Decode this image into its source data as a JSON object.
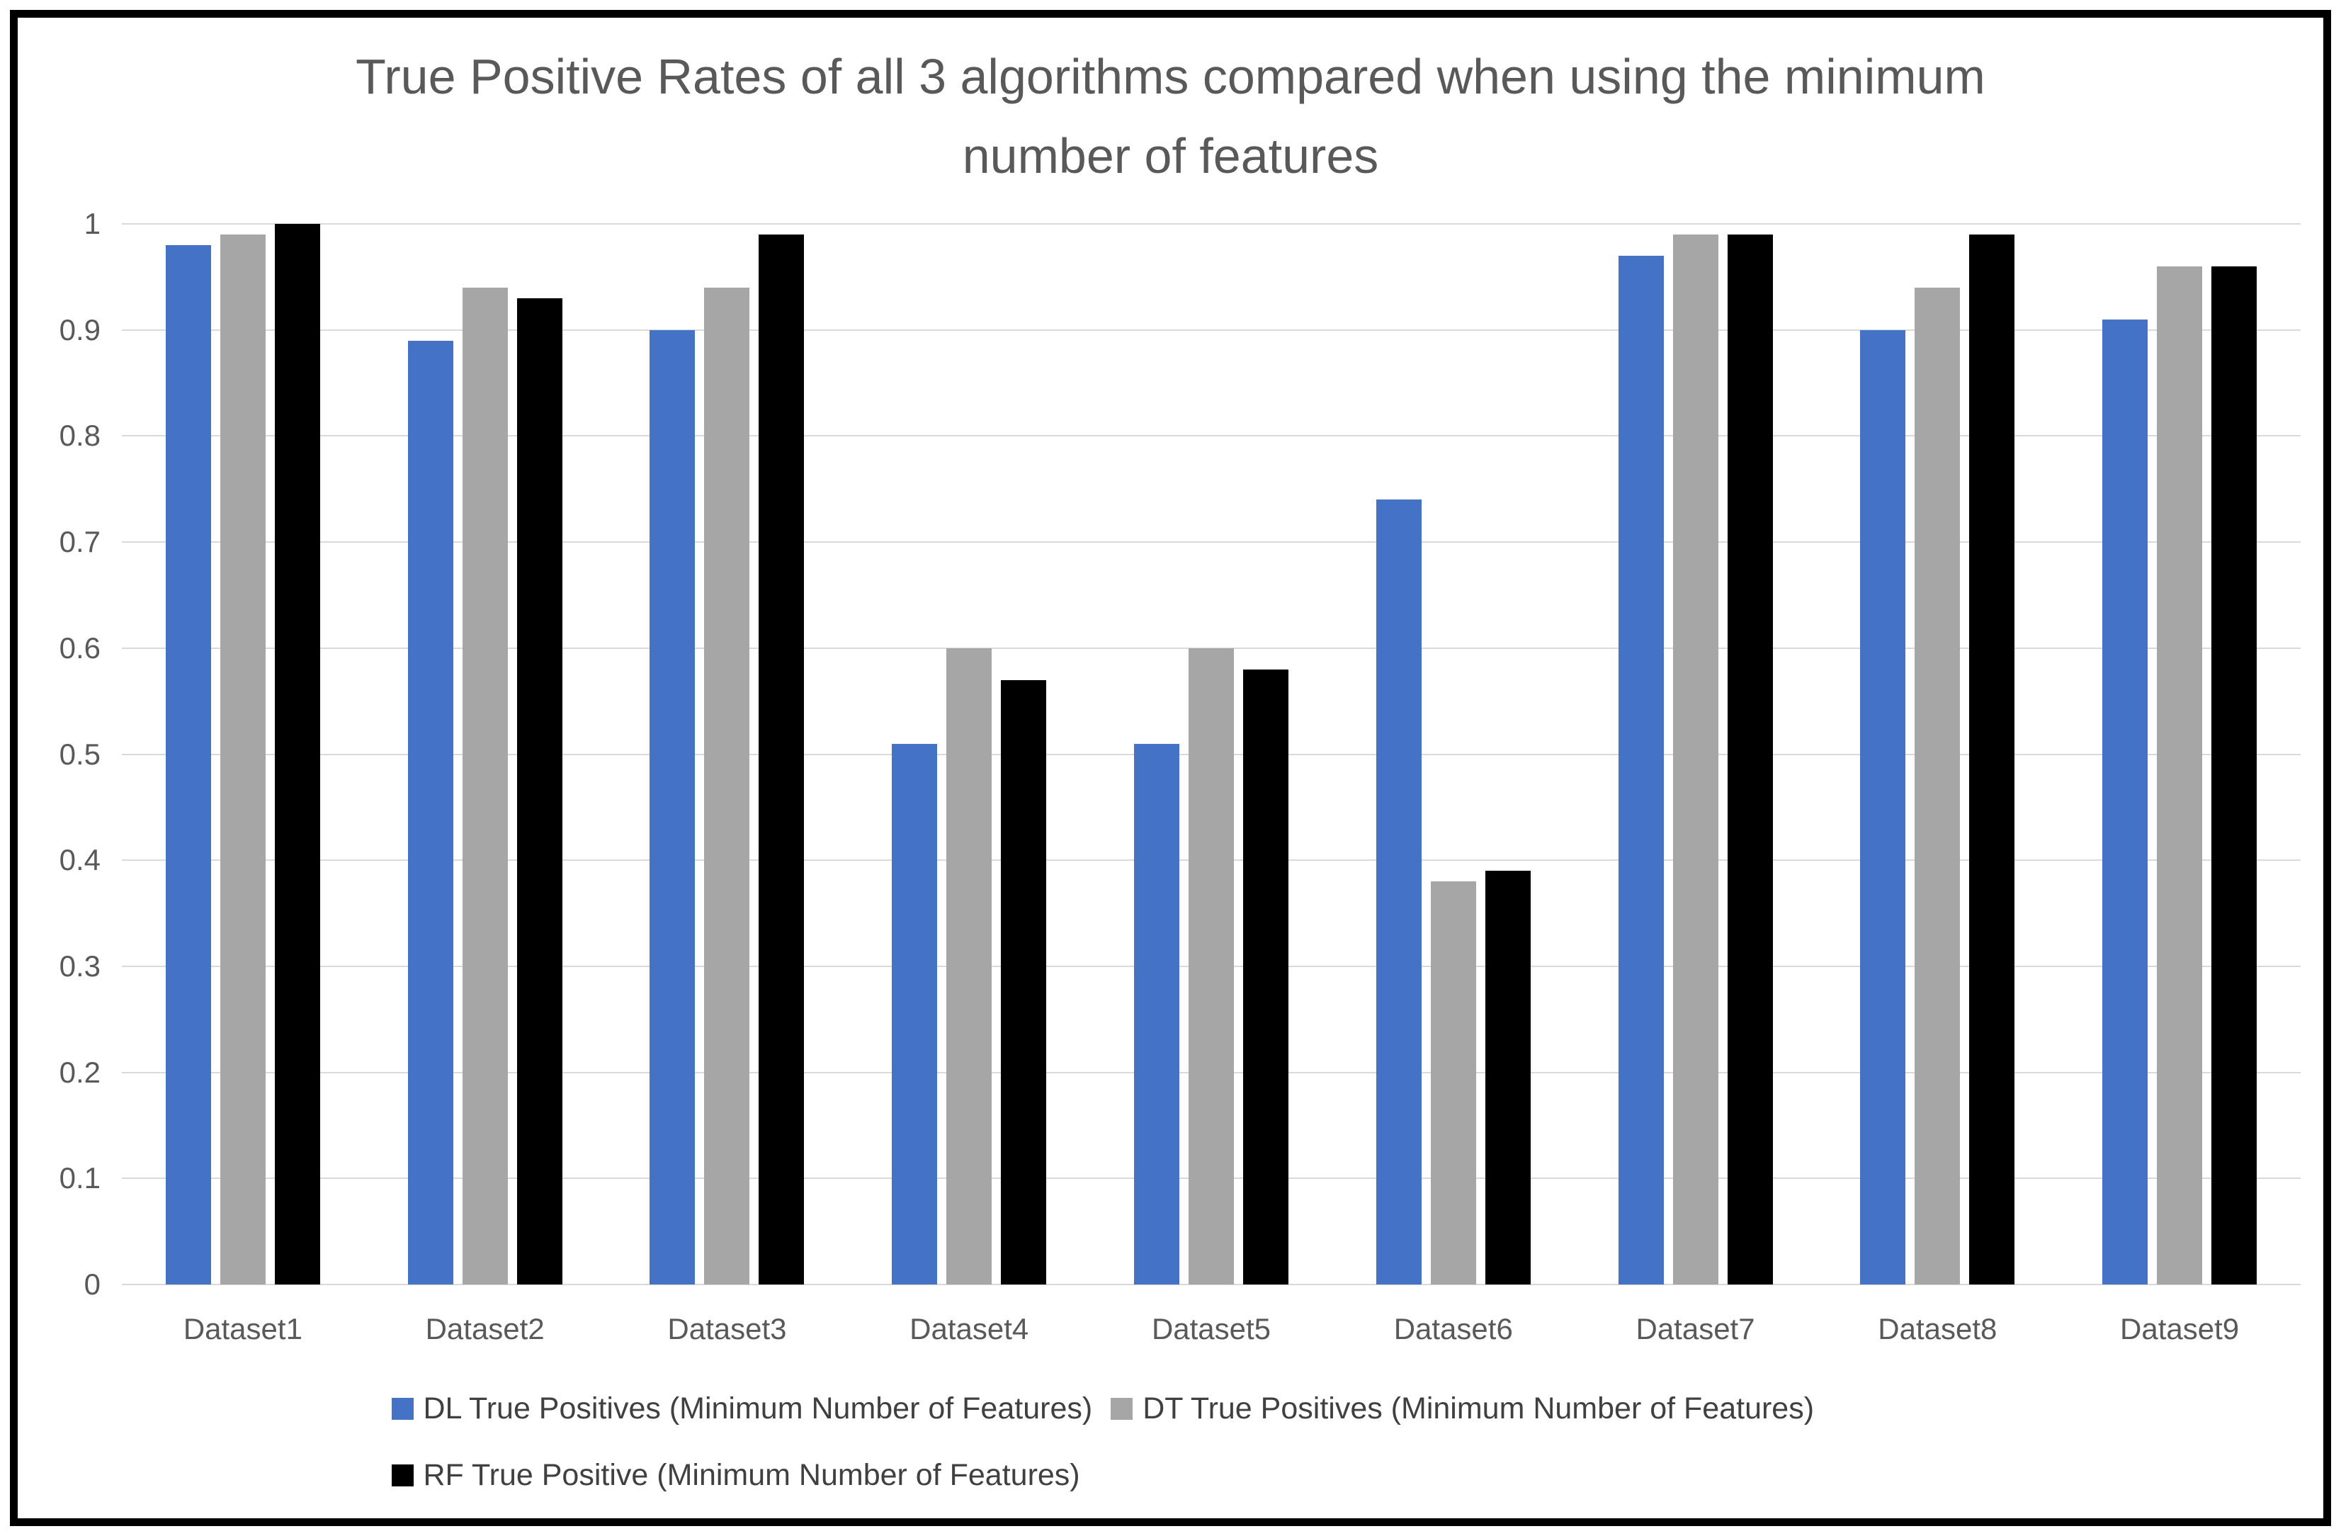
{
  "title": {
    "line1": "True Positive Rates of all 3 algorithms compared when using the minimum",
    "line2": "number of features"
  },
  "chart_data": {
    "type": "bar",
    "title": "True Positive Rates of all 3 algorithms compared when using the minimum number of features",
    "categories": [
      "Dataset1",
      "Dataset2",
      "Dataset3",
      "Dataset4",
      "Dataset5",
      "Dataset6",
      "Dataset7",
      "Dataset8",
      "Dataset9"
    ],
    "series": [
      {
        "name": "DL True Positives (Minimum Number of Features)",
        "short": "DL",
        "color": "#4472C4",
        "values": [
          0.98,
          0.89,
          0.9,
          0.51,
          0.51,
          0.74,
          0.97,
          0.9,
          0.91
        ]
      },
      {
        "name": "DT True Positives (Minimum Number of Features)",
        "short": "DT",
        "color": "#A6A6A6",
        "values": [
          0.99,
          0.94,
          0.94,
          0.6,
          0.6,
          0.38,
          0.99,
          0.94,
          0.96
        ]
      },
      {
        "name": "RF True Positive (Minimum Number of Features)",
        "short": "RF",
        "color": "#000000",
        "values": [
          1.0,
          0.93,
          0.99,
          0.57,
          0.58,
          0.39,
          0.99,
          0.99,
          0.96
        ]
      }
    ],
    "xlabel": "",
    "ylabel": "",
    "ylim": [
      0,
      1
    ],
    "yticks": [
      "0",
      "0.1",
      "0.2",
      "0.3",
      "0.4",
      "0.5",
      "0.6",
      "0.7",
      "0.8",
      "0.9",
      "1"
    ],
    "grid": true,
    "legend_position": "bottom",
    "legend_rows": [
      [
        0,
        1
      ],
      [
        2
      ]
    ]
  },
  "colors": {
    "grid": "#D9D9D9",
    "axis_text": "#595959",
    "legend_text": "#404040",
    "title_text": "#595959",
    "frame_border": "#000000",
    "background": "#FFFFFF"
  }
}
